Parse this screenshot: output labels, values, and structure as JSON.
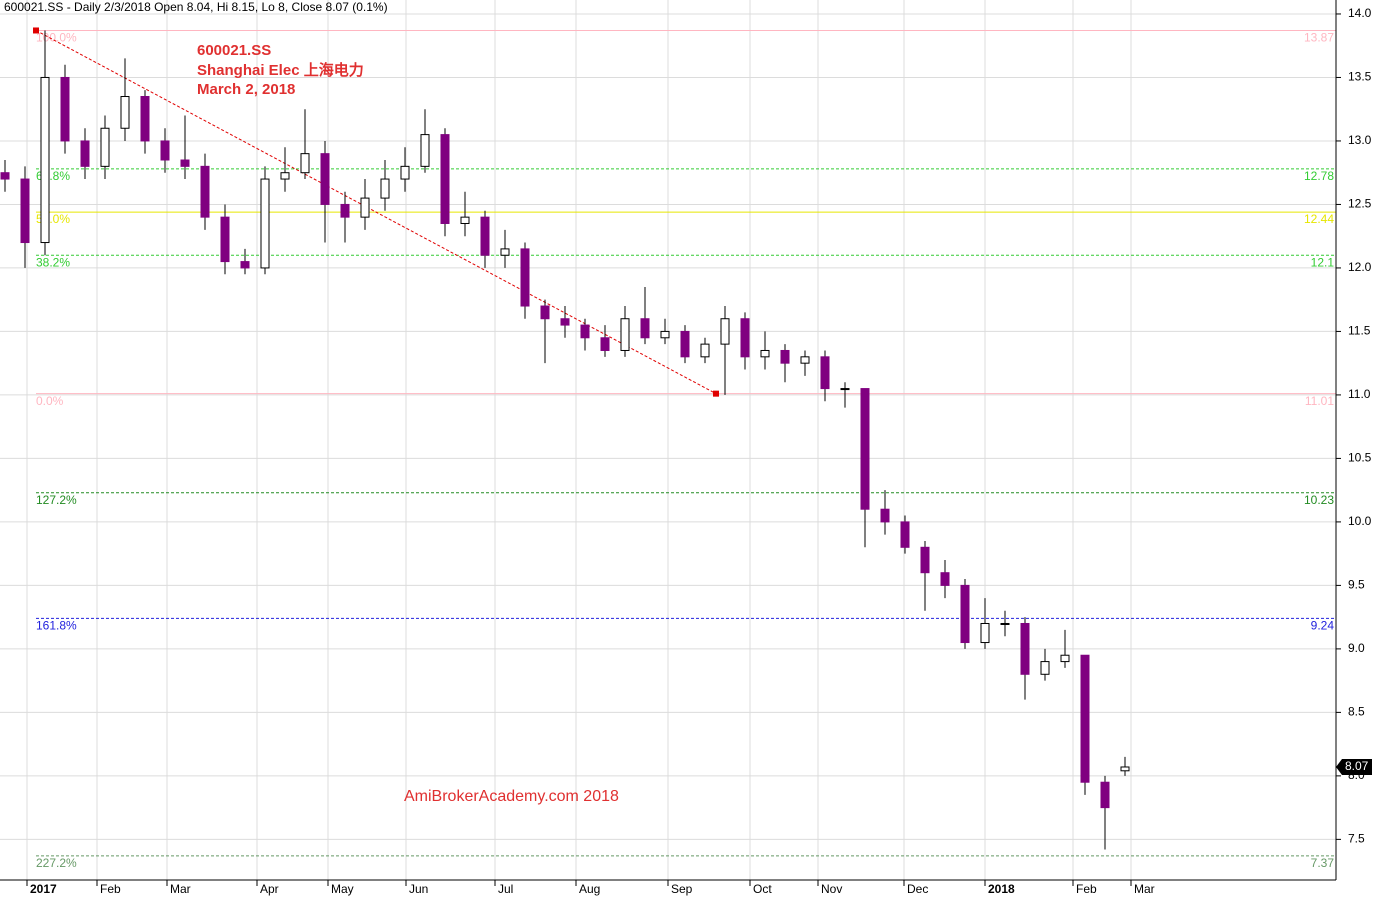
{
  "chart_data": {
    "type": "candlestick",
    "header": "600021.SS - Daily 2/3/2018 Open 8.04, Hi 8.15, Lo 8, Close 8.07 (0.1%)",
    "annotations": [
      "600021.SS",
      "Shanghai Elec 上海电力",
      "March 2, 2018",
      "AmiBrokerAcademy.com 2018"
    ],
    "x": [
      0,
      1,
      2,
      3,
      4,
      5,
      6,
      7,
      8,
      9,
      10,
      11,
      12,
      13,
      14,
      15,
      16,
      17,
      18,
      19,
      20,
      21,
      22,
      23,
      24,
      25,
      26,
      27,
      28,
      29,
      30,
      31,
      32,
      33,
      34,
      35,
      36,
      37,
      38,
      39,
      40,
      41,
      42,
      43,
      44,
      45,
      46,
      47,
      48,
      49,
      50,
      51,
      52,
      53,
      54,
      55,
      56
    ],
    "open": [
      12.75,
      12.7,
      12.2,
      13.5,
      13.0,
      12.8,
      13.1,
      13.35,
      13.0,
      12.85,
      12.8,
      12.4,
      12.05,
      12.0,
      12.7,
      12.75,
      12.9,
      12.5,
      12.4,
      12.55,
      12.7,
      12.8,
      13.05,
      12.35,
      12.4,
      12.1,
      12.15,
      11.7,
      11.6,
      11.55,
      11.45,
      11.35,
      11.6,
      11.45,
      11.5,
      11.3,
      11.4,
      11.6,
      11.3,
      11.35,
      11.25,
      11.3,
      11.05,
      11.05,
      10.1,
      10.0,
      9.8,
      9.6,
      9.5,
      9.05,
      9.2,
      9.2,
      8.8,
      8.9,
      8.95,
      7.95,
      8.04
    ],
    "high": [
      12.85,
      12.8,
      13.87,
      13.6,
      13.1,
      13.2,
      13.65,
      13.4,
      13.1,
      13.2,
      12.9,
      12.5,
      12.15,
      12.8,
      12.95,
      13.25,
      13.0,
      12.6,
      12.7,
      12.85,
      12.95,
      13.25,
      13.1,
      12.6,
      12.45,
      12.3,
      12.2,
      11.75,
      11.7,
      11.6,
      11.55,
      11.7,
      11.85,
      11.6,
      11.55,
      11.45,
      11.7,
      11.65,
      11.5,
      11.4,
      11.35,
      11.35,
      11.1,
      11.05,
      10.25,
      10.05,
      9.85,
      9.7,
      9.55,
      9.4,
      9.3,
      9.25,
      9.0,
      9.15,
      8.95,
      8.0,
      8.15
    ],
    "low": [
      12.6,
      12.0,
      12.1,
      12.9,
      12.7,
      12.7,
      13.0,
      12.9,
      12.75,
      12.7,
      12.3,
      11.95,
      11.95,
      11.95,
      12.6,
      12.7,
      12.2,
      12.2,
      12.3,
      12.45,
      12.6,
      12.75,
      12.25,
      12.25,
      12.0,
      12.0,
      11.6,
      11.25,
      11.45,
      11.35,
      11.3,
      11.3,
      11.4,
      11.4,
      11.25,
      11.25,
      11.0,
      11.2,
      11.2,
      11.1,
      11.15,
      10.95,
      10.9,
      9.8,
      9.9,
      9.75,
      9.3,
      9.4,
      9.0,
      9.0,
      9.1,
      8.6,
      8.75,
      8.85,
      7.85,
      7.42,
      8.0
    ],
    "close": [
      12.7,
      12.2,
      13.5,
      13.0,
      12.8,
      13.1,
      13.35,
      13.0,
      12.85,
      12.8,
      12.4,
      12.05,
      12.0,
      12.7,
      12.75,
      12.9,
      12.5,
      12.4,
      12.55,
      12.7,
      12.8,
      13.05,
      12.35,
      12.4,
      12.1,
      12.15,
      11.7,
      11.6,
      11.55,
      11.45,
      11.35,
      11.6,
      11.45,
      11.5,
      11.3,
      11.4,
      11.6,
      11.3,
      11.35,
      11.25,
      11.3,
      11.05,
      11.05,
      10.1,
      10.0,
      9.8,
      9.6,
      9.5,
      9.05,
      9.2,
      9.2,
      8.8,
      8.9,
      8.95,
      7.95,
      7.75,
      8.07
    ],
    "up_color": "#ffffff",
    "down_color": "#800080",
    "wick_color": "#000000",
    "xlim": [
      -0.25,
      66.55
    ],
    "xticks": [
      {
        "value": 1.1,
        "label": "2017"
      },
      {
        "value": 4.6,
        "label": "Feb"
      },
      {
        "value": 8.1,
        "label": "Mar"
      },
      {
        "value": 12.6,
        "label": "Apr"
      },
      {
        "value": 16.15,
        "label": "May"
      },
      {
        "value": 20.05,
        "label": "Jun"
      },
      {
        "value": 24.5,
        "label": "Jul"
      },
      {
        "value": 28.55,
        "label": "Aug"
      },
      {
        "value": 33.15,
        "label": "Sep"
      },
      {
        "value": 37.25,
        "label": "Oct"
      },
      {
        "value": 40.65,
        "label": "Nov"
      },
      {
        "value": 44.95,
        "label": "Dec"
      },
      {
        "value": 49.0,
        "label": "2018"
      },
      {
        "value": 53.4,
        "label": "Feb"
      },
      {
        "value": 56.3,
        "label": "Mar"
      }
    ],
    "ylim": [
      7.18,
      14.11
    ],
    "yticks": [
      7.5,
      {
        "value": 8,
        "label": "8.0"
      },
      8.5,
      {
        "value": 9,
        "label": "9.0"
      },
      9.5,
      {
        "value": 10,
        "label": "10.0"
      },
      10.5,
      {
        "value": 11,
        "label": "11.0"
      },
      11.5,
      {
        "value": 12,
        "label": "12.0"
      },
      12.5,
      {
        "value": 13,
        "label": "13.0"
      },
      13.5,
      {
        "value": 14,
        "label": "14.0"
      }
    ],
    "grid": true,
    "levels": [
      {
        "label": "100.0%",
        "value": 13.87,
        "color": "#ffb6c1",
        "dash": false
      },
      {
        "label": "61.8%",
        "value": 12.78,
        "color": "#33cc33",
        "dash": true
      },
      {
        "label": "50.0%",
        "value": 12.44,
        "color": "#e6e600",
        "dash": false
      },
      {
        "label": "38.2%",
        "value": 12.1,
        "color": "#33cc33",
        "dash": true
      },
      {
        "label": "0.0%",
        "value": 11.01,
        "color": "#ffb6c1",
        "dash": false
      },
      {
        "label": "127.2%",
        "value": 10.23,
        "color": "#228b22",
        "dash": true
      },
      {
        "label": "161.8%",
        "value": 9.24,
        "color": "#2222dd",
        "dash": true
      },
      {
        "label": "227.2%",
        "value": 7.37,
        "color": "#669966",
        "dash": true
      }
    ],
    "trendline": {
      "x": [
        1.55,
        35.55
      ],
      "values": [
        13.87,
        11.01
      ],
      "color": "#e00000"
    }
  }
}
